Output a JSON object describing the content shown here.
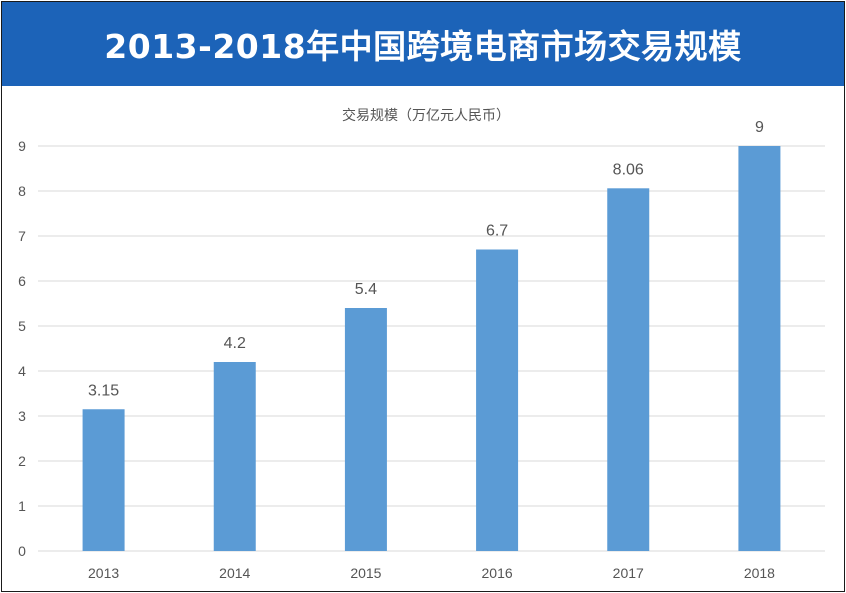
{
  "header": {
    "title": "2013-2018年中国跨境电商市场交易规模"
  },
  "chart_data": {
    "type": "bar",
    "title": "交易规模（万亿元人民币）",
    "xlabel": "",
    "ylabel": "",
    "categories": [
      "2013",
      "2014",
      "2015",
      "2016",
      "2017",
      "2018"
    ],
    "series": [
      {
        "values": [
          3.15,
          4.2,
          5.4,
          6.7,
          8.06,
          9
        ]
      }
    ],
    "data_labels": [
      "3.15",
      "4.2",
      "5.4",
      "6.7",
      "8.06",
      "9"
    ],
    "ylim": [
      0,
      9
    ],
    "yticks": [
      0,
      1,
      2,
      3,
      4,
      5,
      6,
      7,
      8,
      9
    ],
    "grid": true,
    "legend": "none",
    "bar_color": "#5b9bd5",
    "grid_color": "#d9d9d9"
  }
}
